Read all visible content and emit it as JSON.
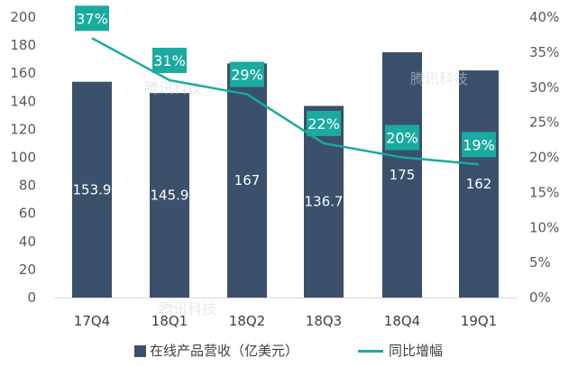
{
  "chart_data": {
    "type": "bar",
    "categories": [
      "17Q4",
      "18Q1",
      "18Q2",
      "18Q3",
      "18Q4",
      "19Q1"
    ],
    "series": [
      {
        "name": "在线产品营收（亿美元）",
        "type": "bar",
        "axis": "left",
        "values": [
          153.9,
          145.9,
          167,
          136.7,
          175,
          162
        ],
        "labels": [
          "153.9",
          "145.9",
          "167",
          "136.7",
          "175",
          "162"
        ]
      },
      {
        "name": "同比增幅",
        "type": "line",
        "axis": "right",
        "values": [
          37,
          31,
          29,
          22,
          20,
          19
        ],
        "labels": [
          "37%",
          "31%",
          "29%",
          "22%",
          "20%",
          "19%"
        ]
      }
    ],
    "y_left": {
      "lim": [
        0,
        200
      ],
      "ticks": [
        "0",
        "20",
        "40",
        "60",
        "80",
        "100",
        "120",
        "140",
        "160",
        "180",
        "200"
      ]
    },
    "y_right": {
      "lim": [
        0,
        40
      ],
      "ticks": [
        "0%",
        "5%",
        "10%",
        "15%",
        "20%",
        "25%",
        "30%",
        "35%",
        "40%"
      ]
    },
    "grid": false,
    "legend": "bottom"
  },
  "colors": {
    "bar": "#3a506b",
    "line": "#1aaaa0",
    "label_box": "#1aaaa0"
  },
  "watermark": "腾讯科技"
}
